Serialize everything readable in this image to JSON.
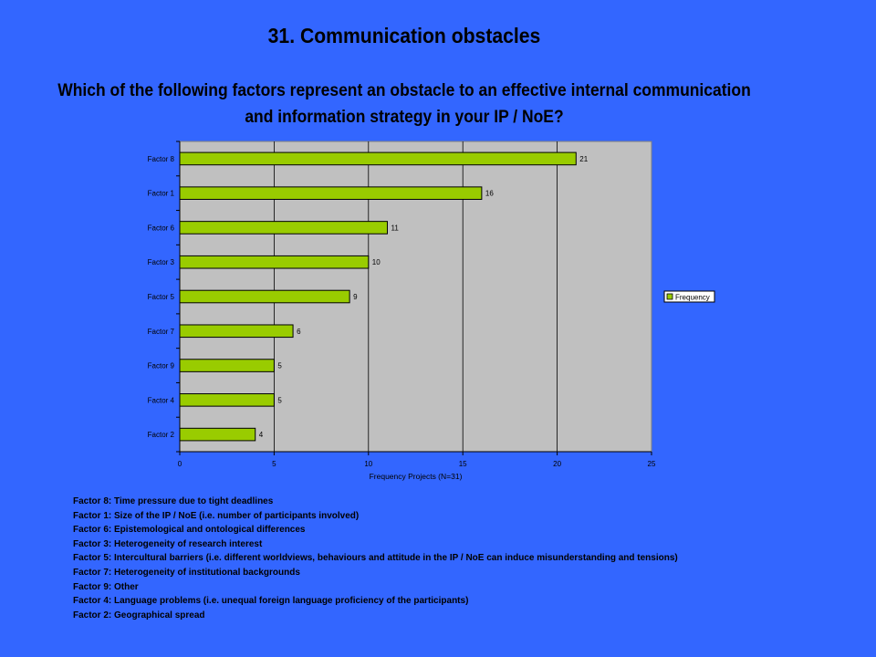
{
  "slide": {
    "title": "31. Communication obstacles",
    "question_line1": "Which of the following factors represent an obstacle to an effective internal communication",
    "question_line2": "and information strategy in your IP / NoE?"
  },
  "chart_data": {
    "type": "bar",
    "orientation": "horizontal",
    "categories": [
      "Factor 8",
      "Factor 1",
      "Factor 6",
      "Factor 3",
      "Factor 5",
      "Factor 7",
      "Factor 9",
      "Factor 4",
      "Factor 2"
    ],
    "series": [
      {
        "name": "Frequency",
        "values": [
          21,
          16,
          11,
          10,
          9,
          6,
          5,
          5,
          4
        ],
        "color": "#99cc00"
      }
    ],
    "xlabel": "Frequency Projects (N=31)",
    "ylabel": "",
    "xlim": [
      0,
      25
    ],
    "xticks": [
      0,
      5,
      10,
      15,
      20,
      25
    ],
    "grid": "vertical",
    "plot_background": "#c0c0c0",
    "legend_position": "right",
    "data_labels": true
  },
  "factor_legend": [
    "Factor 8: Time pressure due to tight deadlines",
    "Factor 1: Size of the IP / NoE (i.e. number of participants involved)",
    "Factor 6: Epistemological and ontological differences",
    "Factor 3: Heterogeneity of research interest",
    "Factor 5: Intercultural barriers (i.e. different worldviews, behaviours and attitude in the IP / NoE can induce misunderstanding and tensions)",
    "Factor 7: Heterogeneity of institutional backgrounds",
    "Factor 9: Other",
    "Factor 4: Language problems (i.e. unequal foreign language proficiency of the participants)",
    "Factor 2: Geographical spread"
  ]
}
